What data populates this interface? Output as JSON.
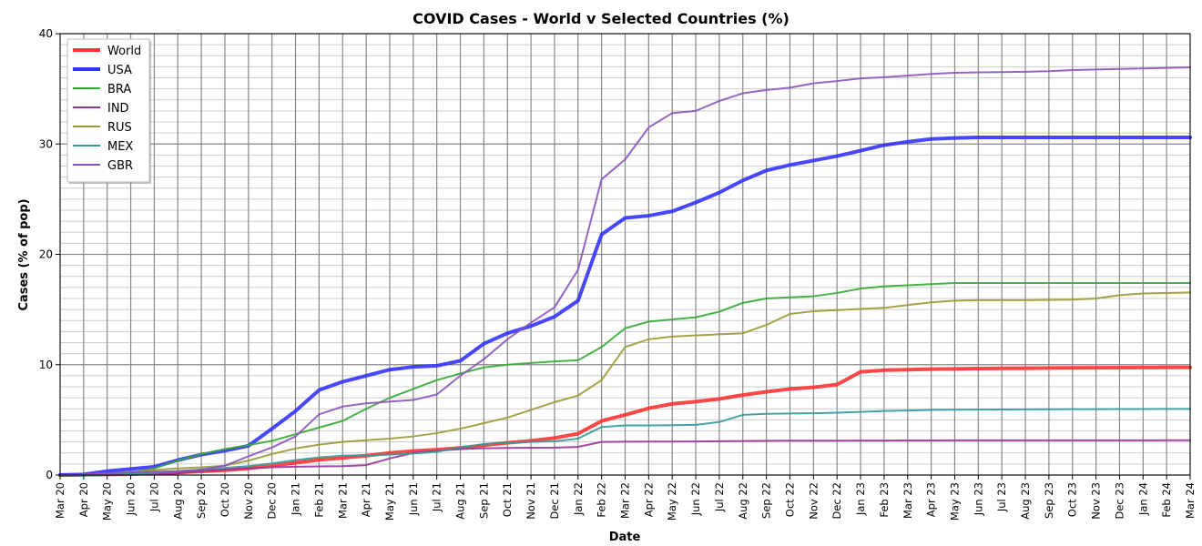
{
  "chart_data": {
    "type": "line",
    "title": "COVID Cases - World v Selected Countries (%)",
    "xlabel": "Date",
    "ylabel": "Cases (% of pop)",
    "ylim": [
      0,
      40
    ],
    "yticks": [
      0,
      10,
      20,
      30,
      40
    ],
    "y_minor_step": 1,
    "grid": true,
    "legend_position": "top-left",
    "x": [
      "Mar 20",
      "Apr 20",
      "May 20",
      "Jun 20",
      "Jul 20",
      "Aug 20",
      "Sep 20",
      "Oct 20",
      "Nov 20",
      "Dec 20",
      "Jan 21",
      "Feb 21",
      "Mar 21",
      "Apr 21",
      "May 21",
      "Jun 21",
      "Jul 21",
      "Aug 21",
      "Sep 21",
      "Oct 21",
      "Nov 21",
      "Dec 21",
      "Jan 22",
      "Feb 22",
      "Mar 22",
      "Apr 22",
      "May 22",
      "Jun 22",
      "Jul 22",
      "Aug 22",
      "Sep 22",
      "Oct 22",
      "Nov 22",
      "Dec 22",
      "Jan 23",
      "Feb 23",
      "Mar 23",
      "Apr 23",
      "May 23",
      "Jun 23",
      "Jul 23",
      "Aug 23",
      "Sep 23",
      "Oct 23",
      "Nov 23",
      "Dec 23",
      "Jan 24",
      "Feb 24",
      "Mar 24"
    ],
    "series": [
      {
        "name": "World",
        "color": "#ff3333",
        "width": 4,
        "values": [
          0.01,
          0.02,
          0.05,
          0.08,
          0.15,
          0.23,
          0.33,
          0.43,
          0.6,
          0.85,
          1.1,
          1.38,
          1.55,
          1.75,
          2.0,
          2.18,
          2.3,
          2.45,
          2.7,
          2.92,
          3.1,
          3.35,
          3.75,
          4.9,
          5.45,
          6.05,
          6.45,
          6.65,
          6.9,
          7.25,
          7.55,
          7.8,
          7.95,
          8.2,
          9.35,
          9.5,
          9.55,
          9.6,
          9.62,
          9.65,
          9.67,
          9.68,
          9.7,
          9.71,
          9.72,
          9.73,
          9.74,
          9.75,
          9.75
        ]
      },
      {
        "name": "USA",
        "color": "#3333ff",
        "width": 4,
        "values": [
          0.0,
          0.05,
          0.35,
          0.55,
          0.75,
          1.35,
          1.85,
          2.2,
          2.65,
          4.2,
          5.8,
          7.7,
          8.45,
          9.0,
          9.55,
          9.8,
          9.9,
          10.35,
          11.9,
          12.85,
          13.5,
          14.35,
          15.8,
          21.8,
          23.3,
          23.5,
          23.9,
          24.7,
          25.6,
          26.7,
          27.6,
          28.1,
          28.5,
          28.9,
          29.4,
          29.9,
          30.2,
          30.45,
          30.55,
          30.6,
          30.6,
          30.6,
          30.6,
          30.6,
          30.6,
          30.6,
          30.6,
          30.6,
          30.6
        ]
      },
      {
        "name": "BRA",
        "color": "#33aa33",
        "width": 2,
        "values": [
          0.0,
          0.01,
          0.05,
          0.2,
          0.6,
          1.3,
          1.9,
          2.35,
          2.7,
          3.1,
          3.7,
          4.3,
          4.9,
          6.0,
          7.0,
          7.8,
          8.6,
          9.2,
          9.75,
          10.0,
          10.15,
          10.3,
          10.4,
          11.6,
          13.3,
          13.9,
          14.1,
          14.3,
          14.8,
          15.6,
          16.0,
          16.1,
          16.2,
          16.5,
          16.9,
          17.1,
          17.2,
          17.3,
          17.4,
          17.4,
          17.4,
          17.4,
          17.4,
          17.4,
          17.4,
          17.4,
          17.4,
          17.4,
          17.4
        ]
      },
      {
        "name": "IND",
        "color": "#993399",
        "width": 2,
        "values": [
          0.0,
          0.0,
          0.01,
          0.03,
          0.06,
          0.15,
          0.35,
          0.5,
          0.6,
          0.7,
          0.75,
          0.78,
          0.8,
          0.9,
          1.5,
          2.0,
          2.2,
          2.35,
          2.42,
          2.45,
          2.47,
          2.48,
          2.55,
          3.0,
          3.02,
          3.03,
          3.03,
          3.04,
          3.06,
          3.08,
          3.1,
          3.11,
          3.11,
          3.11,
          3.12,
          3.12,
          3.13,
          3.13,
          3.14,
          3.14,
          3.14,
          3.14,
          3.14,
          3.14,
          3.14,
          3.14,
          3.14,
          3.15,
          3.15
        ]
      },
      {
        "name": "RUS",
        "color": "#999933",
        "width": 2,
        "values": [
          0.0,
          0.01,
          0.1,
          0.3,
          0.45,
          0.6,
          0.7,
          0.85,
          1.3,
          1.9,
          2.4,
          2.75,
          3.0,
          3.15,
          3.3,
          3.5,
          3.8,
          4.2,
          4.7,
          5.2,
          5.9,
          6.6,
          7.2,
          8.6,
          11.6,
          12.3,
          12.55,
          12.65,
          12.75,
          12.85,
          13.6,
          14.6,
          14.85,
          14.95,
          15.05,
          15.15,
          15.4,
          15.65,
          15.8,
          15.85,
          15.85,
          15.85,
          15.87,
          15.9,
          16.0,
          16.3,
          16.45,
          16.5,
          16.55
        ]
      },
      {
        "name": "MEX",
        "color": "#339999",
        "width": 2,
        "values": [
          0.0,
          0.0,
          0.02,
          0.08,
          0.2,
          0.35,
          0.5,
          0.65,
          0.8,
          1.05,
          1.35,
          1.6,
          1.75,
          1.8,
          1.85,
          1.95,
          2.1,
          2.5,
          2.8,
          2.95,
          3.0,
          3.05,
          3.3,
          4.35,
          4.5,
          4.5,
          4.52,
          4.55,
          4.8,
          5.45,
          5.55,
          5.58,
          5.6,
          5.65,
          5.72,
          5.8,
          5.85,
          5.9,
          5.92,
          5.93,
          5.94,
          5.95,
          5.96,
          5.97,
          5.97,
          5.98,
          5.98,
          5.99,
          5.99
        ]
      },
      {
        "name": "GBR",
        "color": "#8855bb",
        "width": 2,
        "values": [
          0.0,
          0.05,
          0.15,
          0.25,
          0.3,
          0.35,
          0.5,
          0.85,
          1.7,
          2.5,
          3.5,
          5.5,
          6.2,
          6.5,
          6.65,
          6.8,
          7.3,
          9.0,
          10.5,
          12.3,
          13.8,
          15.2,
          18.6,
          26.8,
          28.6,
          31.5,
          32.8,
          33.0,
          33.9,
          34.6,
          34.9,
          35.1,
          35.5,
          35.7,
          35.95,
          36.05,
          36.2,
          36.35,
          36.45,
          36.5,
          36.52,
          36.55,
          36.6,
          36.7,
          36.75,
          36.8,
          36.85,
          36.9,
          36.95
        ]
      }
    ]
  }
}
